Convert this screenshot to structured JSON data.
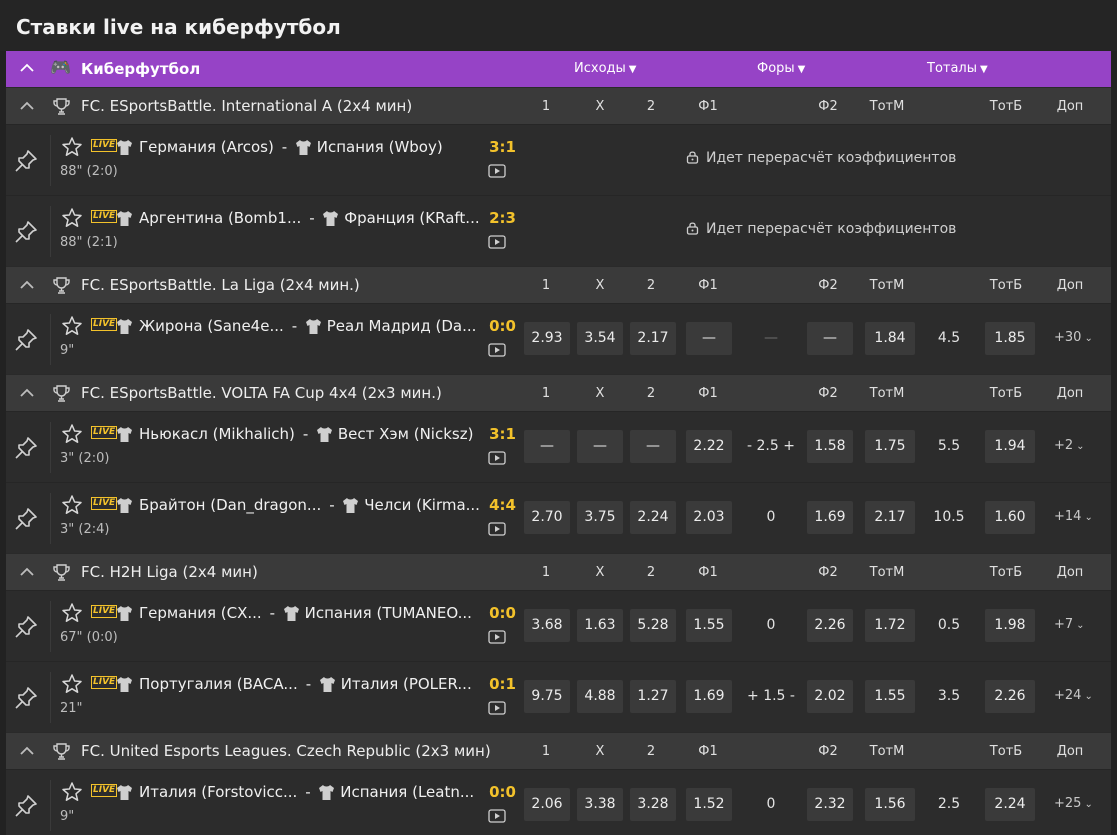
{
  "page_title": "Ставки live на киберфутбол",
  "sport_bar": {
    "sport_name": "Киберфутбол",
    "filters": [
      "Исходы",
      "Форы",
      "Тоталы"
    ]
  },
  "columns": [
    "1",
    "X",
    "2",
    "Ф1",
    "Ф2",
    "ТотМ",
    "ТотБ",
    "Доп"
  ],
  "live_label": "LIVE",
  "recalc_text": "Идет перерасчёт коэффициентов",
  "leagues": [
    {
      "name": "FC. ESportsBattle. International A (2x4 мин)",
      "matches": [
        {
          "team1": "Германия (Arcos)",
          "team2": "Испания (Wboy)",
          "score": "3:1",
          "time": "88\" (2:0)",
          "recalc": true
        },
        {
          "team1": "Аргентина (Bomb1...",
          "team2": "Франция (KRaft...",
          "score": "2:3",
          "time": "88\" (2:1)",
          "recalc": true
        }
      ]
    },
    {
      "name": "FC. ESportsBattle. La Liga (2x4 мин.)",
      "matches": [
        {
          "team1": "Жирона (Sane4e...",
          "team2": "Реал Мадрид (Da...",
          "score": "0:0",
          "time": "9\"",
          "odds": {
            "w1": "2.93",
            "x": "3.54",
            "w2": "2.17",
            "f1": "—",
            "fora": "—",
            "f2": "—",
            "totm": "1.84",
            "total": "4.5",
            "totb": "1.85"
          },
          "fora_dim": true,
          "more": "+30"
        }
      ]
    },
    {
      "name": "FC. ESportsBattle. VOLTA FA Cup 4x4 (2x3 мин.)",
      "matches": [
        {
          "team1": "Ньюкасл (Mikhalich)",
          "team2": "Вест Хэм (Nicksz)",
          "score": "3:1",
          "time": "3\" (2:0)",
          "odds": {
            "w1": "—",
            "x": "—",
            "w2": "—",
            "f1": "2.22",
            "fora": "- 2.5 +",
            "f2": "1.58",
            "totm": "1.75",
            "total": "5.5",
            "totb": "1.94"
          },
          "more": "+2"
        },
        {
          "team1": "Брайтон (Dan_dragon...",
          "team2": "Челси (Kirma...",
          "score": "4:4",
          "time": "3\" (2:4)",
          "odds": {
            "w1": "2.70",
            "x": "3.75",
            "w2": "2.24",
            "f1": "2.03",
            "fora": "0",
            "f2": "1.69",
            "totm": "2.17",
            "total": "10.5",
            "totb": "1.60"
          },
          "more": "+14"
        }
      ]
    },
    {
      "name": "FC. H2H Liga (2x4 мин)",
      "matches": [
        {
          "team1": "Германия (CX...",
          "team2": "Испания (TUMANEO...",
          "score": "0:0",
          "time": "67\" (0:0)",
          "odds": {
            "w1": "3.68",
            "x": "1.63",
            "w2": "5.28",
            "f1": "1.55",
            "fora": "0",
            "f2": "2.26",
            "totm": "1.72",
            "total": "0.5",
            "totb": "1.98"
          },
          "more": "+7"
        },
        {
          "team1": "Португалия (BACA...",
          "team2": "Италия (POLER...",
          "score": "0:1",
          "time": "21\"",
          "odds": {
            "w1": "9.75",
            "x": "4.88",
            "w2": "1.27",
            "f1": "1.69",
            "fora": "+ 1.5 -",
            "f2": "2.02",
            "totm": "1.55",
            "total": "3.5",
            "totb": "2.26"
          },
          "more": "+24"
        }
      ]
    },
    {
      "name": "FC. United Esports Leagues. Czech Republic (2x3 мин)",
      "matches": [
        {
          "team1": "Италия (Forstovicc...",
          "team2": "Испания (Leatn...",
          "score": "0:0",
          "time": "9\"",
          "odds": {
            "w1": "2.06",
            "x": "3.38",
            "w2": "3.28",
            "f1": "1.52",
            "fora": "0",
            "f2": "2.32",
            "totm": "1.56",
            "total": "2.5",
            "totb": "2.24"
          },
          "more": "+25"
        }
      ]
    }
  ],
  "icons": {
    "collapse": "chevron-up-icon",
    "sport": "gamepad-icon",
    "league": "trophy-icon",
    "pin": "pin-icon",
    "favorite": "star-icon",
    "shirt": "shirt-icon",
    "video": "video-icon",
    "lock": "lock-icon"
  },
  "colors": {
    "accent": "#9643c6",
    "score": "#f3c22b",
    "odd_bg": "#3a3a3a",
    "league_bg": "#3a3a3a",
    "row_bg": "#2c2c2c"
  }
}
